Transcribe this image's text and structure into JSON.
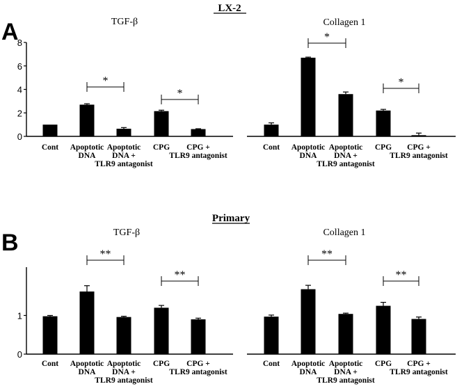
{
  "figure": {
    "panel_a_letter": "A",
    "panel_b_letter": "B",
    "section_a_title": "LX-2",
    "section_b_title": "Primary"
  },
  "chart_data": [
    {
      "type": "bar",
      "panel": "A",
      "title": "TGF-β",
      "categories": [
        [
          "Cont"
        ],
        [
          "Apoptotic",
          "DNA"
        ],
        [
          "Apoptotic",
          "DNA +",
          "TLR9 antagonist"
        ],
        [
          "CPG"
        ],
        [
          "CPG +",
          "TLR9 antagonist"
        ]
      ],
      "values": [
        1.0,
        2.7,
        0.65,
        2.15,
        0.62
      ],
      "errors": [
        0.0,
        0.08,
        0.1,
        0.08,
        0.03
      ],
      "ylim": [
        0,
        8
      ],
      "yticks": [
        0,
        2,
        4,
        6,
        8
      ],
      "significance": [
        {
          "from": 1,
          "to": 2,
          "label": "*"
        },
        {
          "from": 3,
          "to": 4,
          "label": "*"
        }
      ]
    },
    {
      "type": "bar",
      "panel": "A",
      "title": "Collagen 1",
      "categories": [
        [
          "Cont"
        ],
        [
          "Apoptotic",
          "DNA"
        ],
        [
          "Apoptotic",
          "DNA +",
          "TLR9 antagonist"
        ],
        [
          "CPG"
        ],
        [
          "CPG +",
          "TLR9 antagonist"
        ]
      ],
      "values": [
        1.0,
        6.7,
        3.6,
        2.2,
        0.1
      ],
      "errors": [
        0.15,
        0.05,
        0.18,
        0.1,
        0.18
      ],
      "ylim": [
        0,
        8
      ],
      "yticks": [],
      "significance": [
        {
          "from": 1,
          "to": 2,
          "label": "*"
        },
        {
          "from": 3,
          "to": 4,
          "label": "*"
        }
      ]
    },
    {
      "type": "bar",
      "panel": "B",
      "title": "TGF-β",
      "categories": [
        [
          "Cont"
        ],
        [
          "Apoptotic",
          "DNA"
        ],
        [
          "Apoptotic",
          "DNA +",
          "TLR9 antagonist"
        ],
        [
          "CPG"
        ],
        [
          "CPG +",
          "TLR9 antagonist"
        ]
      ],
      "values": [
        0.98,
        1.62,
        0.96,
        1.2,
        0.9
      ],
      "errors": [
        0.02,
        0.15,
        0.02,
        0.06,
        0.03
      ],
      "ylim": [
        0,
        2.25
      ],
      "yticks": [
        0,
        1
      ],
      "significance": [
        {
          "from": 1,
          "to": 2,
          "label": "**"
        },
        {
          "from": 3,
          "to": 4,
          "label": "**"
        }
      ]
    },
    {
      "type": "bar",
      "panel": "B",
      "title": "Collagen 1",
      "categories": [
        [
          "Cont"
        ],
        [
          "Apoptotic",
          "DNA"
        ],
        [
          "Apoptotic",
          "DNA +",
          "TLR9 antagonist"
        ],
        [
          "CPG"
        ],
        [
          "CPG +",
          "TLR9 antagonist"
        ]
      ],
      "values": [
        0.97,
        1.68,
        1.04,
        1.25,
        0.91
      ],
      "errors": [
        0.04,
        0.1,
        0.02,
        0.09,
        0.05
      ],
      "ylim": [
        0,
        2.25
      ],
      "yticks": [],
      "significance": [
        {
          "from": 1,
          "to": 2,
          "label": "**"
        },
        {
          "from": 3,
          "to": 4,
          "label": "**"
        }
      ]
    }
  ]
}
